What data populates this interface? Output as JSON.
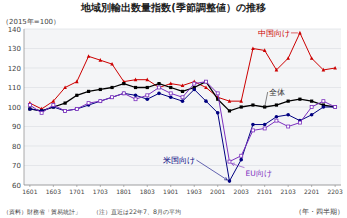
{
  "chart_data": {
    "type": "line",
    "title": "地域別輸出数量指数(季節調整値）の推移",
    "y_label": "（2015年=100）",
    "x_label": "（年・四半期）",
    "annotations": [
      "（資料）財務省「貿易統計」　　（注）直近は22年7、8月の平均"
    ],
    "categories": [
      "1601",
      null,
      "1603",
      null,
      "1701",
      null,
      "1703",
      null,
      "1801",
      null,
      "1803",
      null,
      "1901",
      null,
      "1903",
      null,
      "2001",
      null,
      "2003",
      null,
      "2101",
      null,
      "2103",
      null,
      "2201",
      null,
      "2203"
    ],
    "series": [
      {
        "name": "中国向け",
        "color": "#cc0000",
        "marker": "triangle",
        "values": [
          102,
          99,
          103,
          110,
          113,
          126,
          124,
          122,
          113,
          114,
          114,
          110,
          112,
          111,
          113,
          110,
          105,
          103,
          103,
          130,
          129,
          119,
          125,
          138,
          125,
          119,
          120
        ]
      },
      {
        "name": "全体",
        "color": "#000000",
        "marker": "square",
        "values": [
          99,
          98,
          100,
          102,
          106,
          108,
          109,
          110,
          112,
          110,
          110,
          112,
          110,
          108,
          110,
          113,
          104,
          98,
          100,
          101,
          100,
          101,
          103,
          104,
          103,
          101,
          100
        ]
      },
      {
        "name": "米国向け",
        "color": "#000080",
        "marker": "circle",
        "values": [
          99,
          98,
          100,
          98,
          99,
          101,
          103,
          105,
          107,
          106,
          104,
          107,
          105,
          103,
          109,
          103,
          97,
          62,
          73,
          91,
          91,
          95,
          96,
          93,
          96,
          100,
          100
        ]
      },
      {
        "name": "EU向け",
        "color": "#7B2FBE",
        "marker": "open-square",
        "values": [
          101,
          97,
          101,
          98,
          99,
          102,
          103,
          105,
          107,
          104,
          106,
          110,
          107,
          105,
          112,
          113,
          107,
          72,
          75,
          88,
          89,
          93,
          90,
          92,
          100,
          103,
          100
        ]
      }
    ],
    "ylim": [
      60,
      140
    ],
    "yticks": [
      60,
      70,
      80,
      90,
      100,
      110,
      120,
      130,
      140
    ],
    "grid": true
  }
}
